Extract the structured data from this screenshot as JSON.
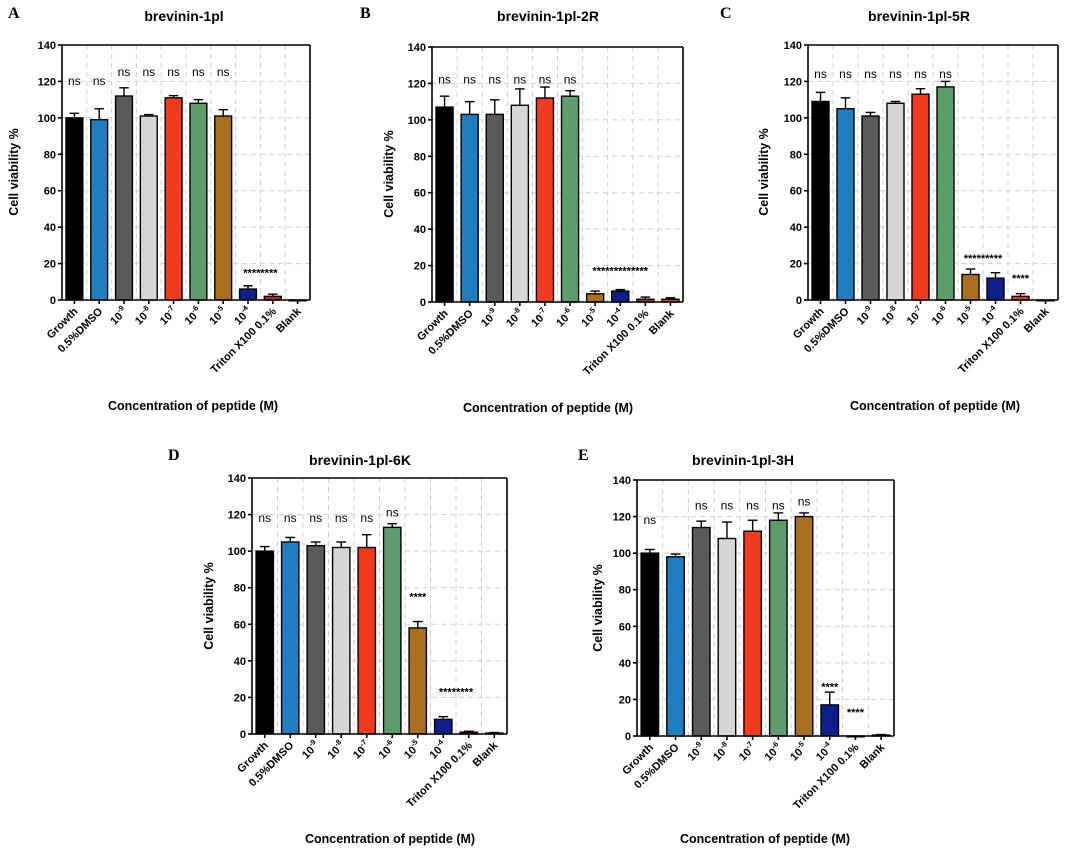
{
  "chart_data": [
    {
      "panel": "A",
      "type": "bar",
      "title": "brevinin-1pl",
      "xlabel": "Concentration of peptide (M)",
      "ylabel": "Cell viability %",
      "ylim": [
        0,
        140
      ],
      "yticks": [
        0,
        20,
        40,
        60,
        80,
        100,
        120,
        140
      ],
      "grid": true,
      "categories": [
        {
          "base": "Growth"
        },
        {
          "base": "0.5%DMSO"
        },
        {
          "base": "10",
          "exp": "-9"
        },
        {
          "base": "10",
          "exp": "-8"
        },
        {
          "base": "10",
          "exp": "-7"
        },
        {
          "base": "10",
          "exp": "-6"
        },
        {
          "base": "10",
          "exp": "-5"
        },
        {
          "base": "10",
          "exp": "-4"
        },
        {
          "base": "Triton X100 0.1%"
        },
        {
          "base": "Blank"
        }
      ],
      "values": [
        100,
        99,
        112,
        101,
        111,
        108,
        101,
        6,
        2,
        0
      ],
      "errors": [
        2.5,
        6,
        4.5,
        0.8,
        1.2,
        2,
        3.5,
        1.8,
        1.2,
        0
      ],
      "colors": [
        "#000000",
        "#1f7dc0",
        "#5a5a5a",
        "#d6d6d6",
        "#f03b1f",
        "#5e9e6c",
        "#a8701e",
        "#0f1e8c",
        "#c62828",
        "#c62828"
      ],
      "annotations": [
        {
          "index": 0,
          "text": "ns",
          "y": 118
        },
        {
          "index": 1,
          "text": "ns",
          "y": 118
        },
        {
          "index": 2,
          "text": "ns",
          "y": 123
        },
        {
          "index": 3,
          "text": "ns",
          "y": 123
        },
        {
          "index": 4,
          "text": "ns",
          "y": 123
        },
        {
          "index": 5,
          "text": "ns",
          "y": 123
        },
        {
          "index": 6,
          "text": "ns",
          "y": 123
        },
        {
          "index": 7,
          "text": "********",
          "y": 13,
          "offset": 0.5
        }
      ]
    },
    {
      "panel": "B",
      "type": "bar",
      "title": "brevinin-1pl-2R",
      "xlabel": "Concentration of peptide (M)",
      "ylabel": "Cell viability %",
      "ylim": [
        0,
        140
      ],
      "yticks": [
        0,
        20,
        40,
        60,
        80,
        100,
        120,
        140
      ],
      "grid": true,
      "categories": [
        {
          "base": "Growth"
        },
        {
          "base": "0.5%DMSO"
        },
        {
          "base": "10",
          "exp": "-9"
        },
        {
          "base": "10",
          "exp": "-8"
        },
        {
          "base": "10",
          "exp": "-7"
        },
        {
          "base": "10",
          "exp": "-6"
        },
        {
          "base": "10",
          "exp": "-5"
        },
        {
          "base": "10",
          "exp": "-4"
        },
        {
          "base": "Triton X100 0.1%"
        },
        {
          "base": "Blank"
        }
      ],
      "values": [
        107,
        103,
        103,
        108,
        112,
        113,
        4.5,
        6,
        1.5,
        1.5
      ],
      "errors": [
        6,
        7,
        8,
        9,
        6,
        3,
        1.5,
        0.8,
        1.2,
        0.8
      ],
      "colors": [
        "#000000",
        "#1f7dc0",
        "#5a5a5a",
        "#d6d6d6",
        "#f03b1f",
        "#5e9e6c",
        "#a8701e",
        "#0f1e8c",
        "#c62828",
        "#f03b1f"
      ],
      "annotations": [
        {
          "index": 0,
          "text": "ns",
          "y": 120
        },
        {
          "index": 1,
          "text": "ns",
          "y": 120
        },
        {
          "index": 2,
          "text": "ns",
          "y": 120
        },
        {
          "index": 3,
          "text": "ns",
          "y": 120
        },
        {
          "index": 4,
          "text": "ns",
          "y": 120
        },
        {
          "index": 5,
          "text": "ns",
          "y": 120
        },
        {
          "index": 6,
          "text": "*************",
          "y": 15,
          "offset": 1
        }
      ]
    },
    {
      "panel": "C",
      "type": "bar",
      "title": "brevinin-1pl-5R",
      "xlabel": "Concentration of peptide (M)",
      "ylabel": "Cell viability %",
      "ylim": [
        0,
        140
      ],
      "yticks": [
        0,
        20,
        40,
        60,
        80,
        100,
        120,
        140
      ],
      "grid": true,
      "categories": [
        {
          "base": "Growth"
        },
        {
          "base": "0.5%DMSO"
        },
        {
          "base": "10",
          "exp": "-9"
        },
        {
          "base": "10",
          "exp": "-8"
        },
        {
          "base": "10",
          "exp": "-7"
        },
        {
          "base": "10",
          "exp": "-6"
        },
        {
          "base": "10",
          "exp": "-5"
        },
        {
          "base": "10",
          "exp": "-4"
        },
        {
          "base": "Triton X100 0.1%"
        },
        {
          "base": "Blank"
        }
      ],
      "values": [
        109,
        105,
        101,
        108,
        113,
        117,
        14,
        12,
        2,
        0
      ],
      "errors": [
        5,
        6,
        2,
        1,
        3,
        3,
        3,
        3,
        1.5,
        0
      ],
      "colors": [
        "#000000",
        "#1f7dc0",
        "#5a5a5a",
        "#d6d6d6",
        "#f03b1f",
        "#5e9e6c",
        "#a8701e",
        "#0f1e8c",
        "#f03b1f",
        "#c62828"
      ],
      "annotations": [
        {
          "index": 0,
          "text": "ns",
          "y": 122
        },
        {
          "index": 1,
          "text": "ns",
          "y": 122
        },
        {
          "index": 2,
          "text": "ns",
          "y": 122
        },
        {
          "index": 3,
          "text": "ns",
          "y": 122
        },
        {
          "index": 4,
          "text": "ns",
          "y": 122
        },
        {
          "index": 5,
          "text": "ns",
          "y": 122
        },
        {
          "index": 6,
          "text": "*********",
          "y": 21,
          "offset": 0.5
        },
        {
          "index": 8,
          "text": "****",
          "y": 10,
          "offset": 0
        }
      ]
    },
    {
      "panel": "D",
      "type": "bar",
      "title": "brevinin-1pl-6K",
      "xlabel": "Concentration of peptide (M)",
      "ylabel": "Cell viability %",
      "ylim": [
        0,
        140
      ],
      "yticks": [
        0,
        20,
        40,
        60,
        80,
        100,
        120,
        140
      ],
      "grid": true,
      "categories": [
        {
          "base": "Growth"
        },
        {
          "base": "0.5%DMSO"
        },
        {
          "base": "10",
          "exp": "-9"
        },
        {
          "base": "10",
          "exp": "-8"
        },
        {
          "base": "10",
          "exp": "-7"
        },
        {
          "base": "10",
          "exp": "-6"
        },
        {
          "base": "10",
          "exp": "-5"
        },
        {
          "base": "10",
          "exp": "-4"
        },
        {
          "base": "Triton X100 0.1%"
        },
        {
          "base": "Blank"
        }
      ],
      "values": [
        100,
        105,
        103,
        102,
        102,
        113,
        58,
        8,
        1,
        0.5
      ],
      "errors": [
        2.5,
        2.5,
        2,
        3,
        7,
        2,
        3.5,
        1.5,
        0.5,
        0.3
      ],
      "colors": [
        "#000000",
        "#1f7dc0",
        "#5a5a5a",
        "#d6d6d6",
        "#f03b1f",
        "#5e9e6c",
        "#a8701e",
        "#0f1e8c",
        "#c62828",
        "#f03b1f"
      ],
      "annotations": [
        {
          "index": 0,
          "text": "ns",
          "y": 116
        },
        {
          "index": 1,
          "text": "ns",
          "y": 116
        },
        {
          "index": 2,
          "text": "ns",
          "y": 116
        },
        {
          "index": 3,
          "text": "ns",
          "y": 116
        },
        {
          "index": 4,
          "text": "ns",
          "y": 116
        },
        {
          "index": 5,
          "text": "ns",
          "y": 119
        },
        {
          "index": 6,
          "text": "****",
          "y": 73,
          "offset": 0
        },
        {
          "index": 7,
          "text": "********",
          "y": 21,
          "offset": 0.5
        }
      ]
    },
    {
      "panel": "E",
      "type": "bar",
      "title": "brevinin-1pl-3H",
      "xlabel": "Concentration of peptide (M)",
      "ylabel": "Cell viability %",
      "ylim": [
        0,
        140
      ],
      "yticks": [
        0,
        20,
        40,
        60,
        80,
        100,
        120,
        140
      ],
      "grid": true,
      "categories": [
        {
          "base": "Growth"
        },
        {
          "base": "0.5%DMSO"
        },
        {
          "base": "10",
          "exp": "-9"
        },
        {
          "base": "10",
          "exp": "-8"
        },
        {
          "base": "10",
          "exp": "-7"
        },
        {
          "base": "10",
          "exp": "-6"
        },
        {
          "base": "10",
          "exp": "-5"
        },
        {
          "base": "10",
          "exp": "-4"
        },
        {
          "base": "Triton X100 0.1%"
        },
        {
          "base": "Blank"
        }
      ],
      "values": [
        100,
        98,
        114,
        108,
        112,
        118,
        120,
        17,
        0,
        0.5
      ],
      "errors": [
        2,
        1.5,
        3.5,
        9,
        6,
        4,
        2,
        7,
        0,
        0.3
      ],
      "colors": [
        "#000000",
        "#1f7dc0",
        "#5a5a5a",
        "#d6d6d6",
        "#f03b1f",
        "#5e9e6c",
        "#a8701e",
        "#0f1e8c",
        "#c62828",
        "#f03b1f"
      ],
      "annotations": [
        {
          "index": 0,
          "text": "ns",
          "y": 116
        },
        {
          "index": 2,
          "text": "ns",
          "y": 124
        },
        {
          "index": 3,
          "text": "ns",
          "y": 124
        },
        {
          "index": 4,
          "text": "ns",
          "y": 124
        },
        {
          "index": 5,
          "text": "ns",
          "y": 124
        },
        {
          "index": 6,
          "text": "ns",
          "y": 126
        },
        {
          "index": 7,
          "text": "****",
          "y": 25,
          "offset": 0
        },
        {
          "index": 8,
          "text": "****",
          "y": 11,
          "offset": 0
        }
      ]
    }
  ]
}
